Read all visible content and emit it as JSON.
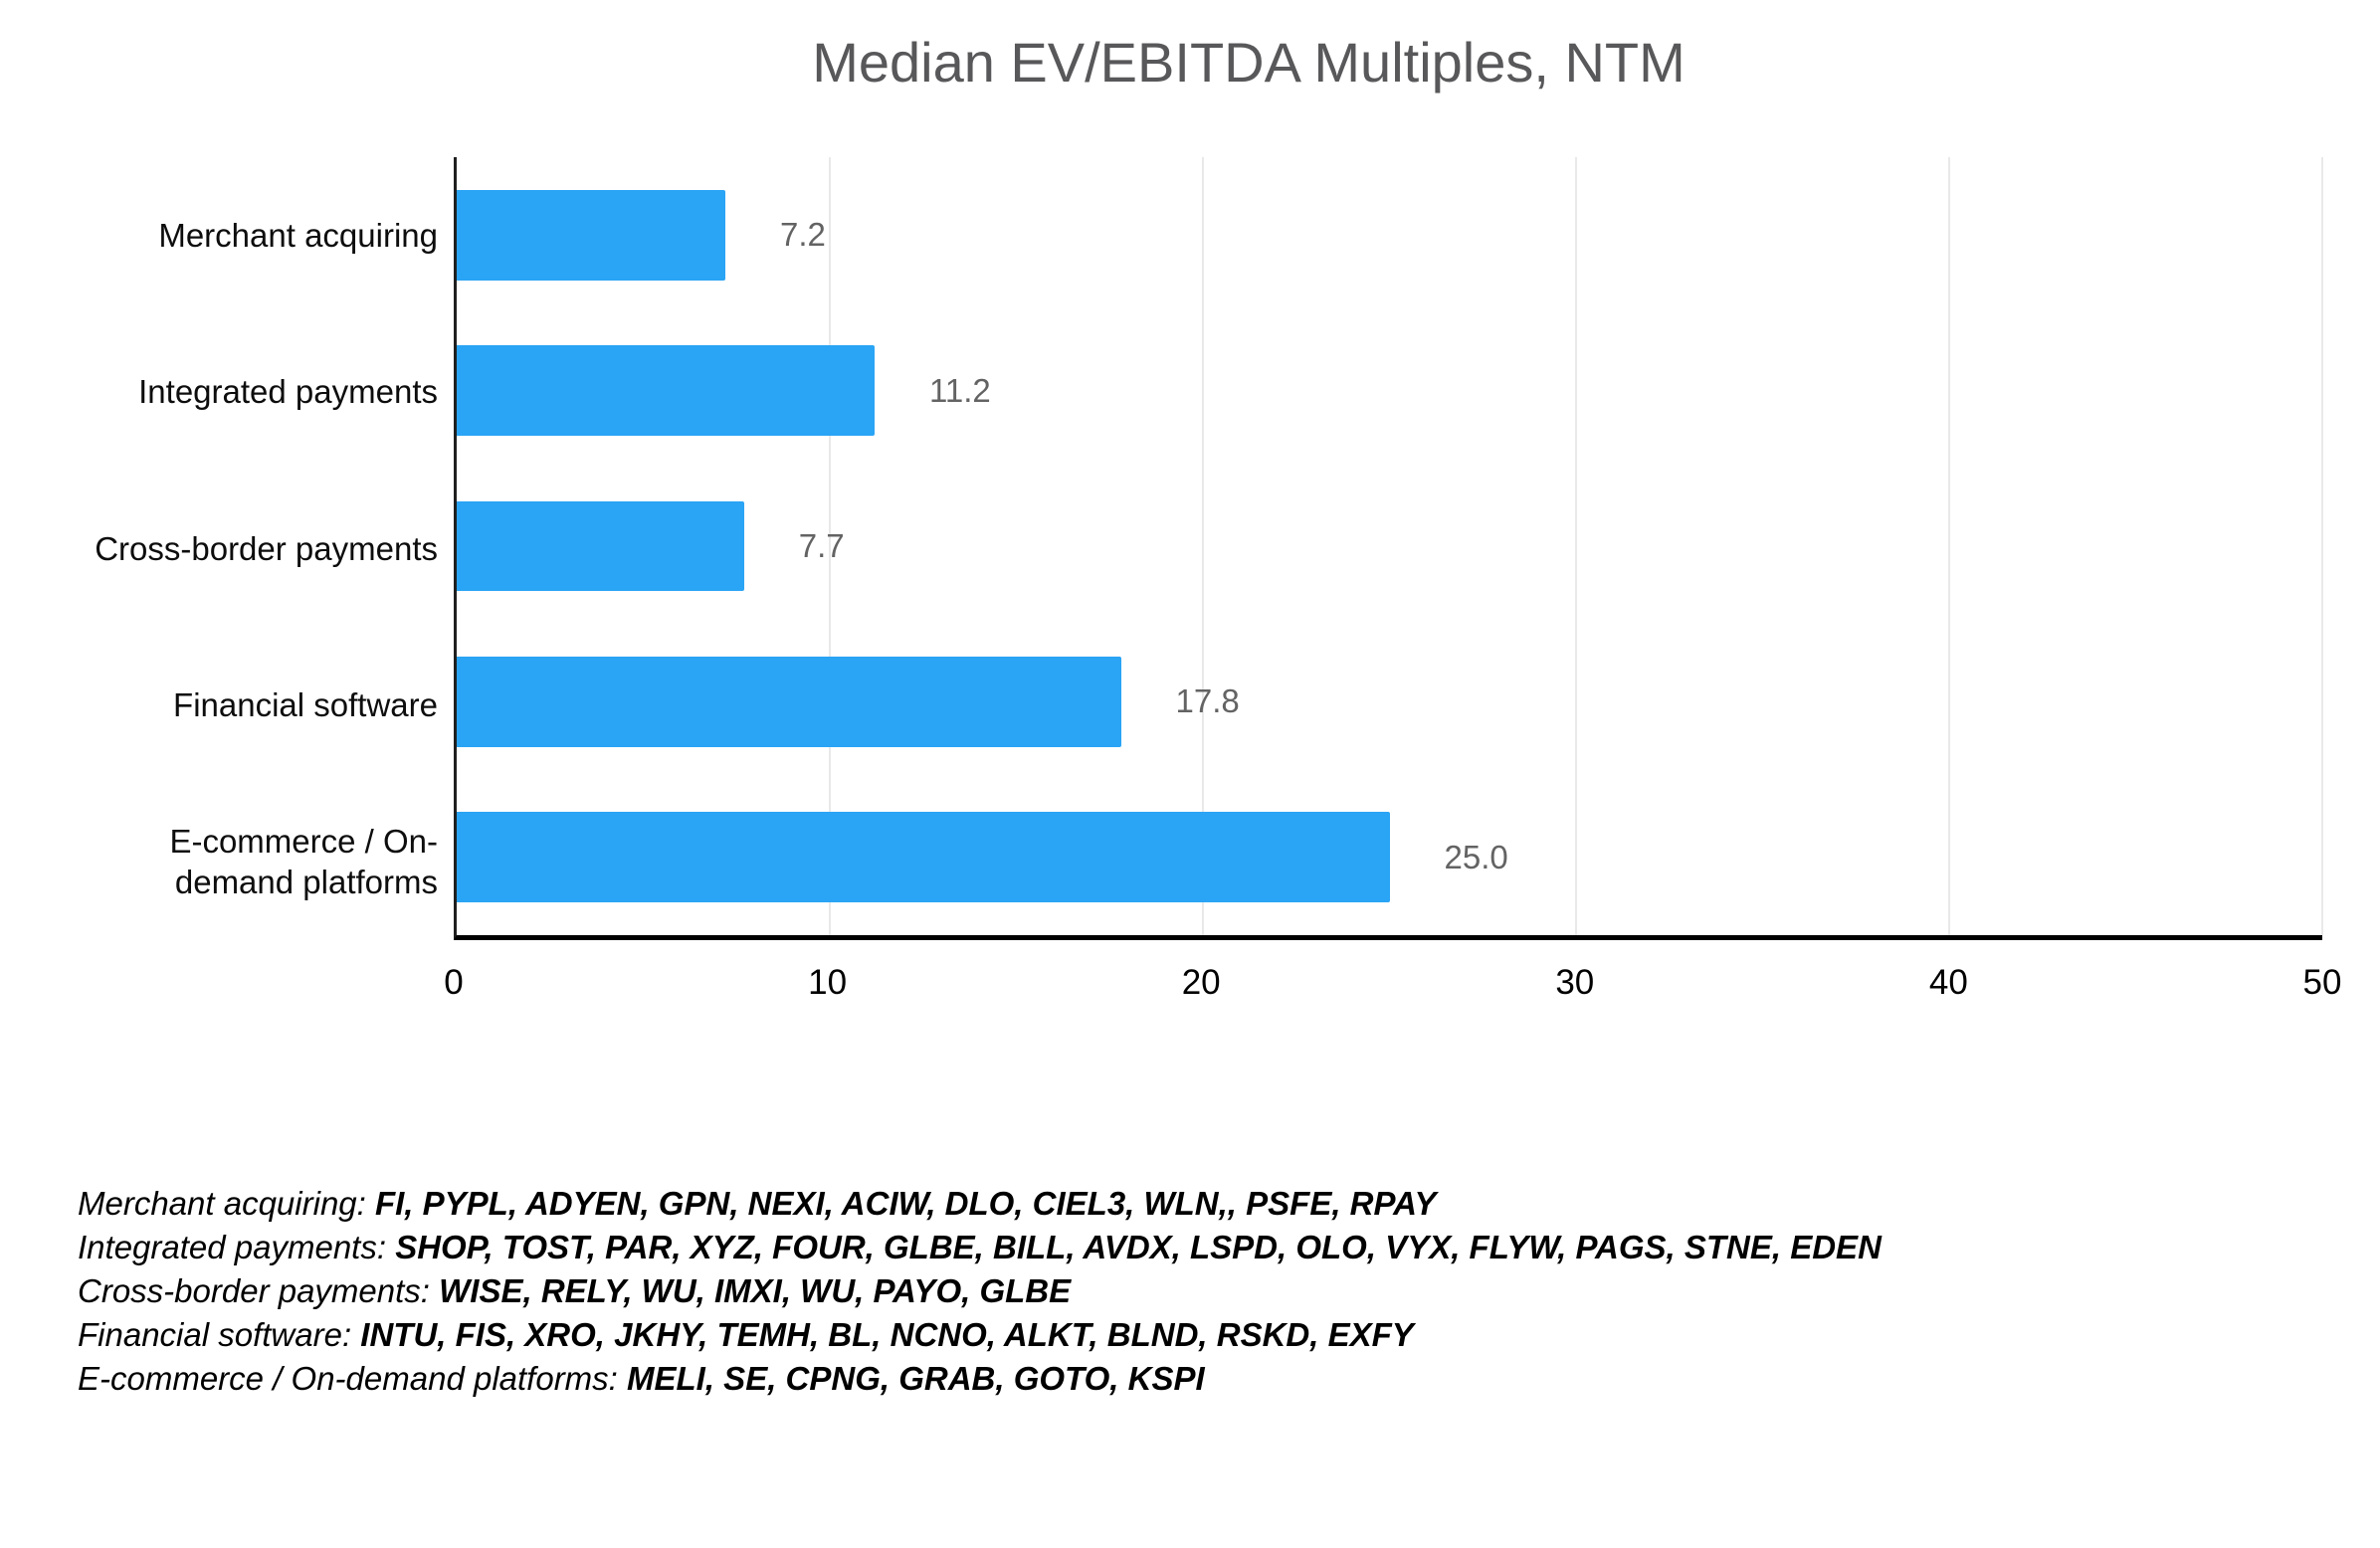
{
  "title": "Median EV/EBITDA Multiples, NTM",
  "chart_data": {
    "type": "bar",
    "orientation": "horizontal",
    "title": "Median EV/EBITDA Multiples, NTM",
    "categories": [
      "Merchant acquiring",
      "Integrated payments",
      "Cross-border payments",
      "Financial software",
      "E-commerce / On-demand platforms"
    ],
    "category_display_lines": [
      [
        "Merchant acquiring"
      ],
      [
        "Integrated payments"
      ],
      [
        "Cross-border payments"
      ],
      [
        "Financial software"
      ],
      [
        "E-commerce / On-",
        "demand platforms"
      ]
    ],
    "values": [
      7.2,
      11.2,
      7.7,
      17.8,
      25.0
    ],
    "value_labels": [
      "7.2",
      "11.2",
      "7.7",
      "17.8",
      "25.0"
    ],
    "xlabel": "",
    "ylabel": "",
    "xlim": [
      0,
      50
    ],
    "x_ticks": [
      0,
      10,
      20,
      30,
      40,
      50
    ],
    "grid": "vertical-light",
    "legend_position": "none"
  },
  "colors": {
    "bar": "#2AA4F5",
    "title_text": "#58585A",
    "value_label": "#636363",
    "category_label": "#0D0D0D",
    "axis_line": "#000000",
    "gridline": "#E9E9E9",
    "background": "#FFFFFF"
  },
  "footnotes": [
    {
      "category": "Merchant acquiring:",
      "tickers": "FI, PYPL, ADYEN, GPN, NEXI, ACIW, DLO, CIEL3, WLN,, PSFE, RPAY"
    },
    {
      "category": "Integrated payments:",
      "tickers": "SHOP, TOST, PAR, XYZ, FOUR, GLBE, BILL, AVDX, LSPD, OLO, VYX, FLYW, PAGS, STNE, EDEN"
    },
    {
      "category": "Cross-border payments:",
      "tickers": "WISE, RELY, WU, IMXI, WU, PAYO, GLBE"
    },
    {
      "category": "Financial software:",
      "tickers": "INTU, FIS, XRO, JKHY, TEMH, BL, NCNO, ALKT, BLND, RSKD, EXFY"
    },
    {
      "category": "E-commerce / On-demand platforms:",
      "tickers": "MELI, SE, CPNG, GRAB, GOTO, KSPI"
    }
  ]
}
